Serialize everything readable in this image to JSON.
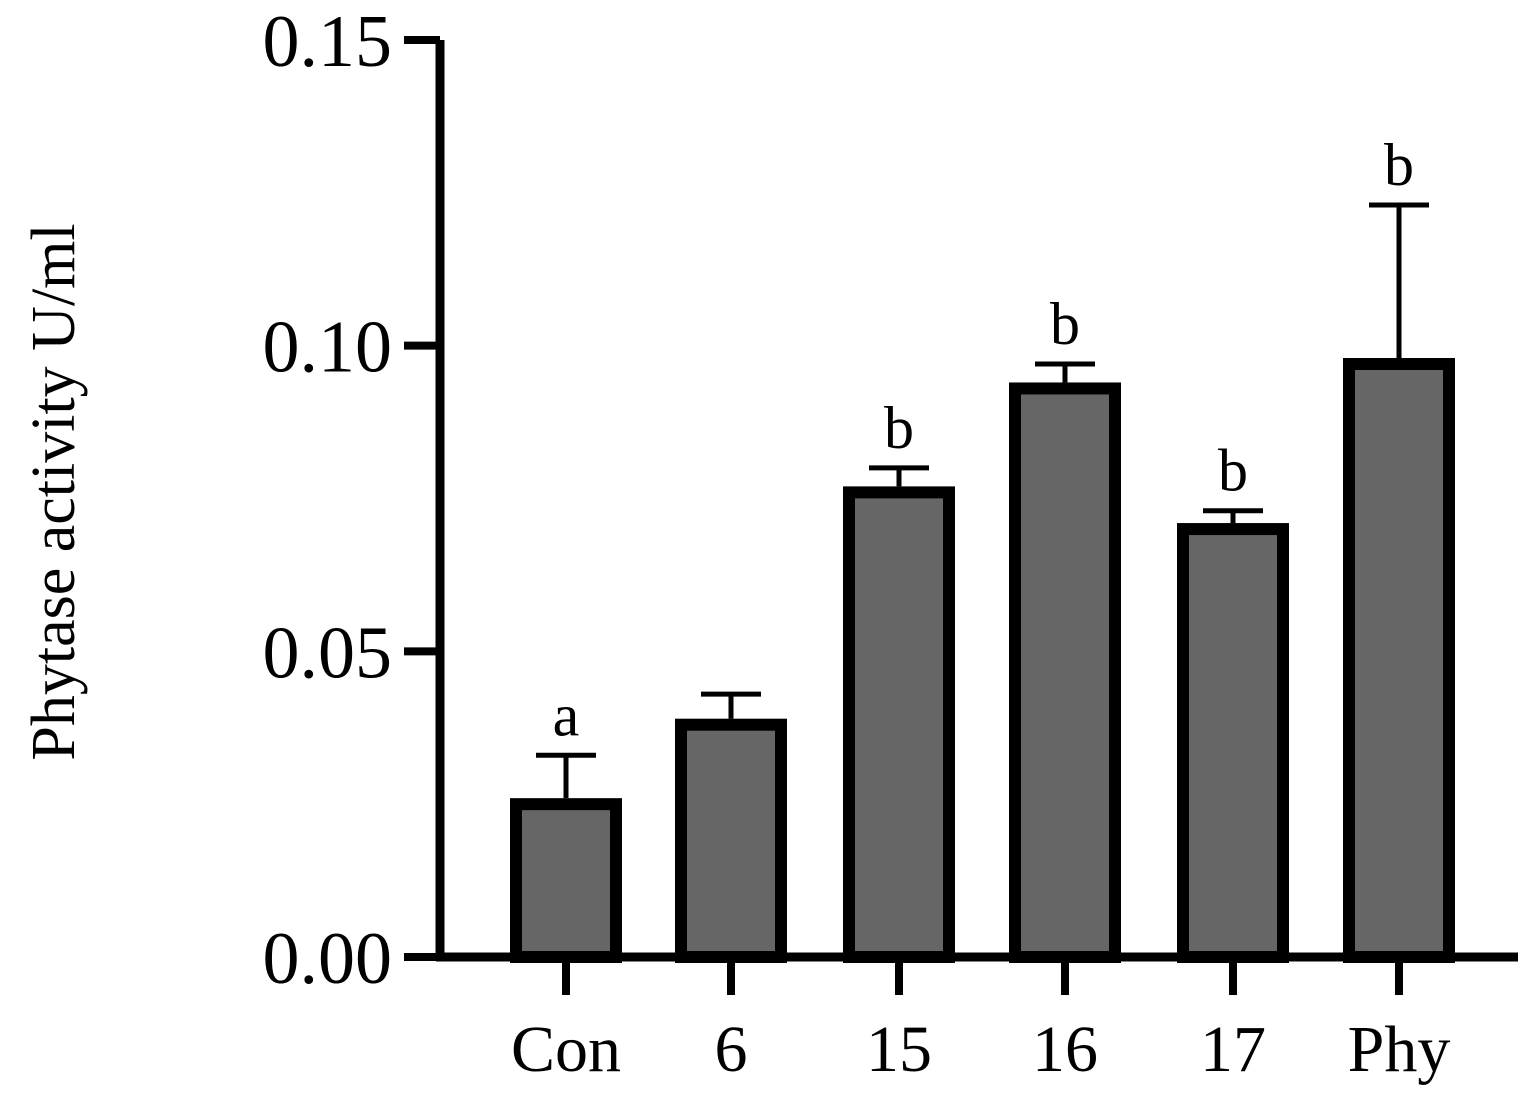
{
  "chart_data": {
    "type": "bar",
    "title": "",
    "xlabel": "",
    "ylabel": "Phytase activity U/ml",
    "categories": [
      "Con",
      "6",
      "15",
      "16",
      "17",
      "Phy"
    ],
    "values": [
      0.025,
      0.038,
      0.076,
      0.093,
      0.07,
      0.097
    ],
    "error_upper": [
      0.033,
      0.043,
      0.08,
      0.097,
      0.073,
      0.123
    ],
    "significance": [
      "a",
      "",
      "b",
      "b",
      "b",
      "b"
    ],
    "ylim": [
      0.0,
      0.15
    ],
    "yticks": [
      0.0,
      0.05,
      0.1,
      0.15
    ],
    "ytick_labels": [
      "0.00",
      "0.05",
      "0.10",
      "0.15"
    ],
    "grid": false,
    "legend": "none",
    "bar_color": "#666666",
    "edge_color": "#000000"
  }
}
